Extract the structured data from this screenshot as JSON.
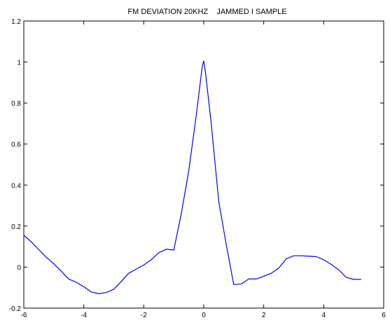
{
  "chart_data": {
    "type": "line",
    "title": "FM DEVIATION 20KHZ    JAMMED I SAMPLE",
    "xlabel": "",
    "ylabel": "",
    "xlim": [
      -6,
      6
    ],
    "ylim": [
      -0.2,
      1.2
    ],
    "xticks": [
      -6,
      -4,
      -2,
      0,
      2,
      4,
      6
    ],
    "yticks": [
      -0.2,
      0,
      0.2,
      0.4,
      0.6,
      0.8,
      1,
      1.2
    ],
    "xtick_labels": [
      "-6",
      "-4",
      "-2",
      "0",
      "2",
      "4",
      "6"
    ],
    "ytick_labels": [
      "-0.2",
      "0",
      "0.2",
      "0.4",
      "0.6",
      "0.8",
      "1",
      "1.2"
    ],
    "grid": false,
    "series": [
      {
        "color": "#0000ff",
        "x": [
          -6.0,
          -5.75,
          -5.5,
          -5.25,
          -5.0,
          -4.75,
          -4.5,
          -4.25,
          -4.0,
          -3.75,
          -3.5,
          -3.25,
          -3.0,
          -2.75,
          -2.5,
          -2.25,
          -2.0,
          -1.75,
          -1.5,
          -1.25,
          -1.0,
          -0.75,
          -0.5,
          -0.25,
          -0.05,
          0.0,
          0.05,
          0.25,
          0.5,
          0.75,
          1.0,
          1.25,
          1.5,
          1.75,
          2.0,
          2.25,
          2.5,
          2.75,
          3.0,
          3.25,
          3.5,
          3.75,
          4.0,
          4.25,
          4.5,
          4.75,
          5.0,
          5.25
        ],
        "values": [
          0.155,
          0.123,
          0.085,
          0.048,
          0.016,
          -0.02,
          -0.059,
          -0.074,
          -0.096,
          -0.121,
          -0.13,
          -0.124,
          -0.108,
          -0.07,
          -0.03,
          -0.01,
          0.01,
          0.036,
          0.07,
          0.087,
          0.083,
          0.26,
          0.47,
          0.74,
          0.98,
          1.005,
          0.96,
          0.7,
          0.32,
          0.11,
          -0.085,
          -0.083,
          -0.058,
          -0.058,
          -0.045,
          -0.03,
          -0.005,
          0.04,
          0.055,
          0.055,
          0.053,
          0.051,
          0.036,
          0.013,
          -0.014,
          -0.05,
          -0.06,
          -0.06
        ]
      }
    ]
  }
}
